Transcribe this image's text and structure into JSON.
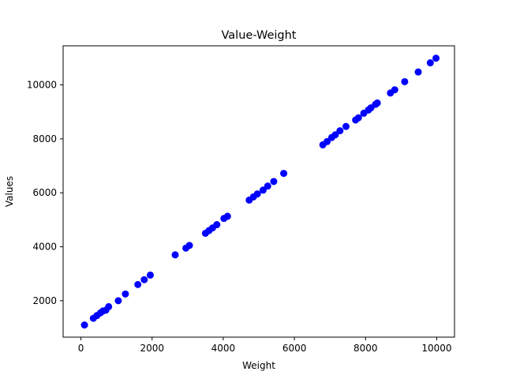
{
  "chart_data": {
    "type": "scatter",
    "title": "Value-Weight",
    "xlabel": "Weight",
    "ylabel": "Values",
    "xlim": [
      -500,
      10500
    ],
    "ylim": [
      650,
      11450
    ],
    "xticks": [
      0,
      2000,
      4000,
      6000,
      8000,
      10000
    ],
    "yticks": [
      2000,
      4000,
      6000,
      8000,
      10000
    ],
    "grid": false,
    "legend": "none",
    "marker_color": "#0000ff",
    "series": [
      {
        "points": [
          [
            100,
            1100
          ],
          [
            350,
            1350
          ],
          [
            450,
            1450
          ],
          [
            550,
            1550
          ],
          [
            620,
            1620
          ],
          [
            700,
            1650
          ],
          [
            780,
            1780
          ],
          [
            1050,
            2000
          ],
          [
            1250,
            2250
          ],
          [
            1600,
            2600
          ],
          [
            1780,
            2780
          ],
          [
            1950,
            2950
          ],
          [
            2650,
            3700
          ],
          [
            2950,
            3950
          ],
          [
            3050,
            4050
          ],
          [
            3500,
            4500
          ],
          [
            3600,
            4600
          ],
          [
            3700,
            4700
          ],
          [
            3820,
            4820
          ],
          [
            4020,
            5050
          ],
          [
            4120,
            5130
          ],
          [
            4730,
            5730
          ],
          [
            4850,
            5850
          ],
          [
            4960,
            5960
          ],
          [
            5120,
            6100
          ],
          [
            5250,
            6250
          ],
          [
            5420,
            6420
          ],
          [
            5700,
            6720
          ],
          [
            6800,
            7780
          ],
          [
            6920,
            7900
          ],
          [
            7050,
            8050
          ],
          [
            7150,
            8150
          ],
          [
            7280,
            8300
          ],
          [
            7450,
            8460
          ],
          [
            7720,
            8700
          ],
          [
            7800,
            8780
          ],
          [
            7950,
            8950
          ],
          [
            8080,
            9070
          ],
          [
            8150,
            9150
          ],
          [
            8280,
            9280
          ],
          [
            8330,
            9330
          ],
          [
            8700,
            9700
          ],
          [
            8820,
            9820
          ],
          [
            9100,
            10120
          ],
          [
            9480,
            10480
          ],
          [
            9820,
            10820
          ],
          [
            9980,
            10990
          ]
        ]
      }
    ]
  }
}
